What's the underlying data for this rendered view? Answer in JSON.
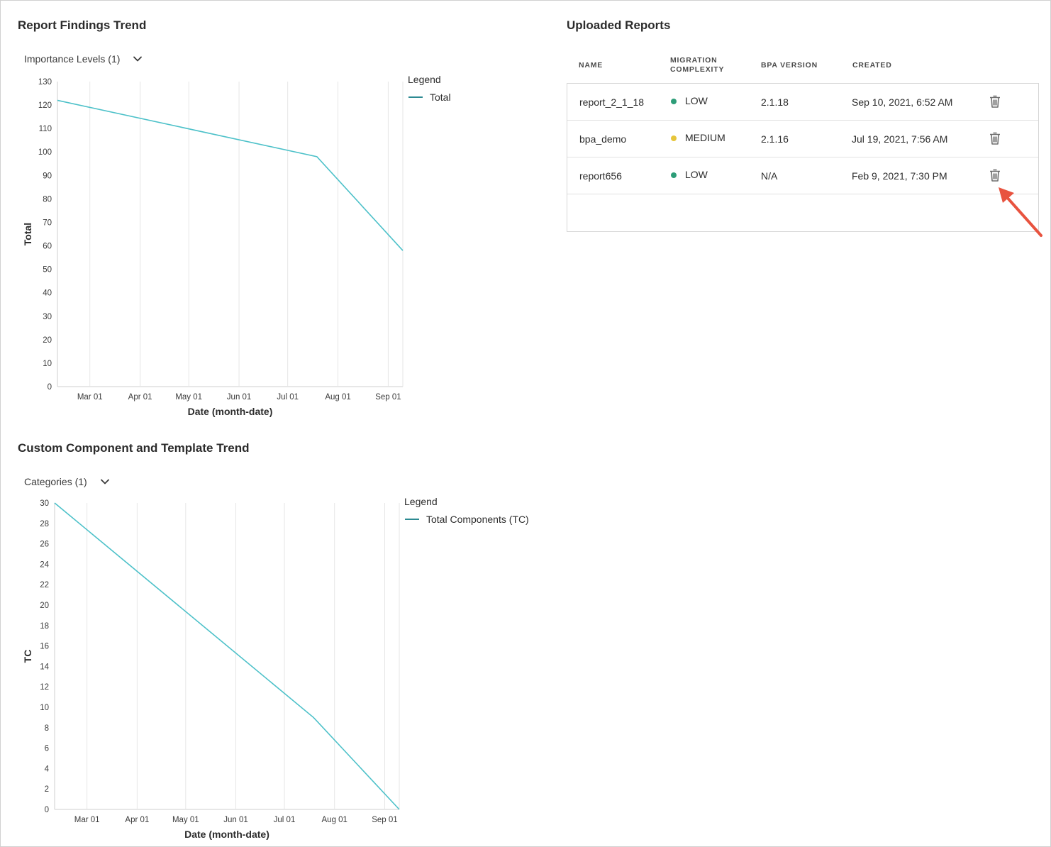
{
  "colors": {
    "line": "#4dc1c9",
    "legend_line": "#2d8a92",
    "grid": "#e6e6e6",
    "dot_low": "#2d9d78",
    "dot_medium": "#e6c53a",
    "arrow": "#e8533f"
  },
  "findings_chart": {
    "title": "Report Findings Trend",
    "filter_label": "Importance Levels (1)",
    "chart_data": {
      "type": "line",
      "title": "Report Findings Trend",
      "xlabel": "Date (month-date)",
      "ylabel": "Total",
      "ylim": [
        0,
        130
      ],
      "yticks": [
        0,
        10,
        20,
        30,
        40,
        50,
        60,
        70,
        80,
        90,
        100,
        110,
        120,
        130
      ],
      "xticks": [
        "Mar 01",
        "Apr 01",
        "May 01",
        "Jun 01",
        "Jul 01",
        "Aug 01",
        "Sep 01"
      ],
      "xrange": [
        "2021-02-09",
        "2021-09-10"
      ],
      "grid": true,
      "legend_title": "Legend",
      "legend_position": "right",
      "series": [
        {
          "name": "Total",
          "points": [
            {
              "x": "2021-02-09",
              "y": 122
            },
            {
              "x": "2021-07-19",
              "y": 98
            },
            {
              "x": "2021-09-10",
              "y": 58
            }
          ]
        }
      ]
    }
  },
  "components_chart": {
    "title": "Custom Component and Template Trend",
    "filter_label": "Categories (1)",
    "chart_data": {
      "type": "line",
      "title": "Custom Component and Template Trend",
      "xlabel": "Date (month-date)",
      "ylabel": "TC",
      "ylim": [
        0,
        30
      ],
      "yticks": [
        0,
        2,
        4,
        6,
        8,
        10,
        12,
        14,
        16,
        18,
        20,
        22,
        24,
        26,
        28,
        30
      ],
      "xticks": [
        "Mar 01",
        "Apr 01",
        "May 01",
        "Jun 01",
        "Jul 01",
        "Aug 01",
        "Sep 01"
      ],
      "xrange": [
        "2021-02-09",
        "2021-09-10"
      ],
      "grid": true,
      "legend_title": "Legend",
      "legend_position": "right",
      "series": [
        {
          "name": "Total Components (TC)",
          "points": [
            {
              "x": "2021-02-09",
              "y": 30
            },
            {
              "x": "2021-07-19",
              "y": 9
            },
            {
              "x": "2021-09-10",
              "y": 0
            }
          ]
        }
      ]
    }
  },
  "reports": {
    "title": "Uploaded Reports",
    "columns": {
      "name": "NAME",
      "complexity_line1": "MIGRATION",
      "complexity_line2": "COMPLEXITY",
      "version": "BPA VERSION",
      "created": "CREATED"
    },
    "rows": [
      {
        "name": "report_2_1_18",
        "complexity": "LOW",
        "complexity_color": "#2d9d78",
        "version": "2.1.18",
        "created": "Sep 10, 2021, 6:52 AM",
        "delete_icon": "trash-icon"
      },
      {
        "name": "bpa_demo",
        "complexity": "MEDIUM",
        "complexity_color": "#e6c53a",
        "version": "2.1.16",
        "created": "Jul 19, 2021, 7:56 AM",
        "delete_icon": "trash-icon"
      },
      {
        "name": "report656",
        "complexity": "LOW",
        "complexity_color": "#2d9d78",
        "version": "N/A",
        "created": "Feb 9, 2021, 7:30 PM",
        "delete_icon": "trash-icon"
      }
    ]
  }
}
